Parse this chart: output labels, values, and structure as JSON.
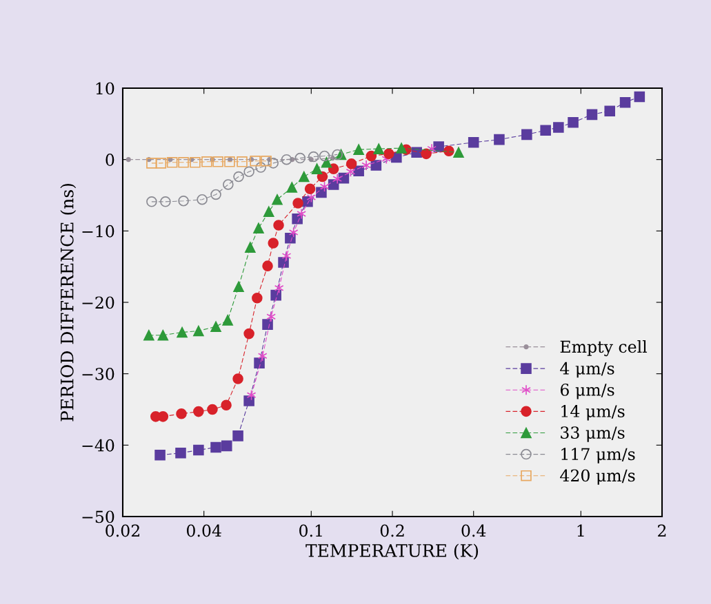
{
  "chart_data": {
    "type": "line",
    "xlabel": "TEMPERATURE (K)",
    "ylabel": "PERIOD DIFFERENCE (ns)",
    "log": "x",
    "grid": false,
    "legend": "bottom right",
    "line_style": "dashed",
    "xlim": [
      0.02,
      2
    ],
    "xticks": [
      0.02,
      0.04,
      0.1,
      0.2,
      0.4,
      1,
      2
    ],
    "ylim": [
      -50,
      10
    ],
    "yticks": [
      10,
      0,
      {
        "value": -10,
        "label": "−10"
      },
      {
        "value": -20,
        "label": "−20"
      },
      {
        "value": -30,
        "label": "−30"
      },
      {
        "value": -40,
        "label": "−40"
      },
      {
        "value": -50,
        "label": "−50"
      }
    ],
    "series": [
      {
        "name": "Empty cell",
        "color": "#9a8f9a",
        "marker": "circle",
        "x": [
          0.021,
          0.025,
          0.03,
          0.036,
          0.043,
          0.05,
          0.06,
          0.07,
          0.085,
          0.1,
          0.12
        ],
        "values": [
          0,
          0,
          0,
          0,
          0,
          0,
          0,
          0,
          0,
          0,
          0.2
        ]
      },
      {
        "name": "4 μm/s",
        "color": "#5a3c9e",
        "marker": "square",
        "x": [
          0.0275,
          0.0328,
          0.0382,
          0.0443,
          0.0486,
          0.0535,
          0.0588,
          0.0642,
          0.0689,
          0.074,
          0.0789,
          0.0836,
          0.0888,
          0.0969,
          0.109,
          0.121,
          0.132,
          0.15,
          0.174,
          0.207,
          0.246,
          0.297,
          0.4,
          0.498,
          0.63,
          0.74,
          0.826,
          0.936,
          1.1,
          1.28,
          1.46,
          1.65
        ],
        "values": [
          -41.4,
          -41.1,
          -40.7,
          -40.3,
          -40.1,
          -38.7,
          -33.8,
          -28.5,
          -23.1,
          -19.0,
          -14.4,
          -11.0,
          -8.3,
          -5.9,
          -4.6,
          -3.5,
          -2.6,
          -1.6,
          -0.8,
          0.3,
          1.0,
          1.8,
          2.4,
          2.8,
          3.5,
          4.1,
          4.5,
          5.2,
          6.3,
          6.8,
          8.0,
          8.8
        ]
      },
      {
        "name": "6 μm/s",
        "color": "#e04cc8",
        "marker": "cross",
        "x": [
          0.06,
          0.066,
          0.071,
          0.076,
          0.081,
          0.086,
          0.092,
          0.1,
          0.112,
          0.125,
          0.14,
          0.16,
          0.19,
          0.23,
          0.28
        ],
        "values": [
          -33.0,
          -27.5,
          -22.0,
          -18.0,
          -13.5,
          -10.2,
          -7.6,
          -5.3,
          -3.8,
          -2.7,
          -1.7,
          -0.8,
          0.1,
          null,
          1.5
        ]
      },
      {
        "name": "14 μm/s",
        "color": "#d8222a",
        "marker": "circle",
        "x": [
          0.0265,
          0.0282,
          0.033,
          0.0382,
          0.043,
          0.0484,
          0.0535,
          0.0588,
          0.063,
          0.0689,
          0.0723,
          0.0757,
          0.0893,
          0.099,
          0.11,
          0.121,
          0.141,
          0.167,
          0.194,
          0.225,
          0.267,
          0.324
        ],
        "values": [
          -36.0,
          -36.0,
          -35.6,
          -35.3,
          -35.0,
          -34.4,
          -30.7,
          -24.4,
          -19.4,
          -14.9,
          -11.7,
          -9.2,
          -6.1,
          -4.1,
          -2.4,
          -1.3,
          -0.6,
          0.5,
          0.8,
          1.4,
          0.8,
          1.2
        ]
      },
      {
        "name": "33 μm/s",
        "color": "#2e9a3a",
        "marker": "triangle",
        "x": [
          0.025,
          0.0282,
          0.0332,
          0.0382,
          0.0443,
          0.049,
          0.0538,
          0.0594,
          0.0638,
          0.0696,
          0.0748,
          0.0848,
          0.094,
          0.105,
          0.114,
          0.129,
          0.15,
          0.178,
          0.216,
          0.352
        ],
        "values": [
          -24.6,
          -24.6,
          -24.2,
          -24.0,
          -23.4,
          -22.5,
          -17.8,
          -12.3,
          -9.6,
          -7.3,
          -5.6,
          -3.9,
          -2.4,
          -1.3,
          -0.4,
          0.7,
          1.4,
          1.5,
          1.6,
          1.0
        ]
      },
      {
        "name": "117 μm/s",
        "color": "#8a8a92",
        "marker": "circle_open",
        "x": [
          0.0256,
          0.0288,
          0.0336,
          0.0394,
          0.0443,
          0.0492,
          0.0538,
          0.0588,
          0.065,
          0.0723,
          0.081,
          0.091,
          0.102,
          0.112,
          0.125
        ],
        "values": [
          -5.9,
          -5.9,
          -5.8,
          -5.6,
          -4.9,
          -3.5,
          -2.4,
          -1.7,
          -1.1,
          -0.5,
          0,
          0.2,
          0.4,
          0.5,
          0.7
        ]
      },
      {
        "name": "420 μm/s",
        "color": "#e8a860",
        "marker": "square_open",
        "x": [
          0.0256,
          0.0277,
          0.0305,
          0.0336,
          0.0371,
          0.041,
          0.0451,
          0.0498,
          0.0554,
          0.062,
          0.0681
        ],
        "values": [
          -0.5,
          -0.5,
          -0.4,
          -0.4,
          -0.4,
          -0.3,
          -0.3,
          -0.3,
          -0.3,
          -0.2,
          -0.2
        ]
      }
    ]
  }
}
